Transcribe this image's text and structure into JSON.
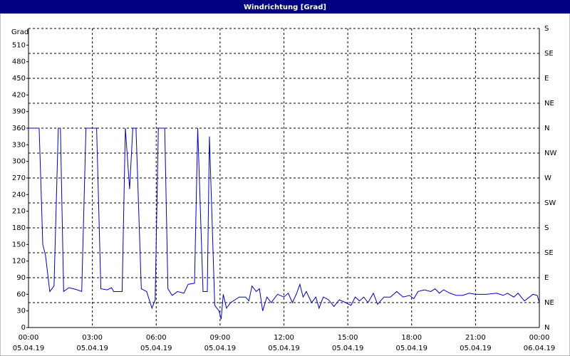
{
  "chart_data": {
    "type": "line",
    "title": "Windrichtung [Grad]",
    "y_label": "Grad",
    "xlim": [
      0,
      24
    ],
    "xticks": [
      {
        "value": 0,
        "label": [
          "00:00",
          "05.04.19"
        ]
      },
      {
        "value": 3,
        "label": [
          "03:00",
          "05.04.19"
        ]
      },
      {
        "value": 6,
        "label": [
          "06:00",
          "05.04.19"
        ]
      },
      {
        "value": 9,
        "label": [
          "09:00",
          "05.04.19"
        ]
      },
      {
        "value": 12,
        "label": [
          "12:00",
          "05.04.19"
        ]
      },
      {
        "value": 15,
        "label": [
          "15:00",
          "05.04.19"
        ]
      },
      {
        "value": 18,
        "label": [
          "18:00",
          "05.04.19"
        ]
      },
      {
        "value": 21,
        "label": [
          "21:00",
          "05.04.19"
        ]
      },
      {
        "value": 24,
        "label": [
          "00:00",
          "06.04.19"
        ]
      }
    ],
    "ylim": [
      0,
      540
    ],
    "yticks": [
      0,
      30,
      60,
      90,
      120,
      150,
      180,
      210,
      240,
      270,
      300,
      330,
      360,
      390,
      420,
      450,
      480,
      510
    ],
    "y2lim": [
      0,
      540
    ],
    "y2ticks": [
      {
        "value": 0,
        "label": "N"
      },
      {
        "value": 45,
        "label": "NE"
      },
      {
        "value": 90,
        "label": "E"
      },
      {
        "value": 135,
        "label": "SE"
      },
      {
        "value": 180,
        "label": "S"
      },
      {
        "value": 225,
        "label": "SW"
      },
      {
        "value": 270,
        "label": "W"
      },
      {
        "value": 315,
        "label": "NW"
      },
      {
        "value": 360,
        "label": "N"
      },
      {
        "value": 405,
        "label": "NE"
      },
      {
        "value": 450,
        "label": "E"
      },
      {
        "value": 495,
        "label": "SE"
      },
      {
        "value": 540,
        "label": "S"
      }
    ],
    "grid": true,
    "x": [
      0,
      0.5,
      0.55,
      0.67,
      0.8,
      1.0,
      1.2,
      1.4,
      1.5,
      1.65,
      1.9,
      2.3,
      2.5,
      2.7,
      3.2,
      3.4,
      3.7,
      3.9,
      4.0,
      4.4,
      4.55,
      4.75,
      4.9,
      5.05,
      5.3,
      5.55,
      5.8,
      5.95,
      6.1,
      6.4,
      6.55,
      6.75,
      7.0,
      7.3,
      7.5,
      7.8,
      7.95,
      8.2,
      8.4,
      8.5,
      8.75,
      8.95,
      9.05,
      9.15,
      9.3,
      9.5,
      9.9,
      10.2,
      10.35,
      10.5,
      10.7,
      10.85,
      11.0,
      11.2,
      11.4,
      11.7,
      12.0,
      12.2,
      12.4,
      12.6,
      12.75,
      12.9,
      13.05,
      13.3,
      13.5,
      13.65,
      13.85,
      14.1,
      14.35,
      14.6,
      14.9,
      15.15,
      15.35,
      15.55,
      15.75,
      15.95,
      16.2,
      16.4,
      16.7,
      17.0,
      17.3,
      17.6,
      17.9,
      18.1,
      18.3,
      18.6,
      18.9,
      19.1,
      19.3,
      19.5,
      19.8,
      20.1,
      20.4,
      20.7,
      21.0,
      21.5,
      22.0,
      22.3,
      22.5,
      22.8,
      23.0,
      23.3,
      23.7,
      23.9,
      24.0
    ],
    "series": [
      {
        "color": "#0000c0",
        "values": [
          360,
          360,
          300,
          150,
          130,
          65,
          75,
          360,
          360,
          65,
          72,
          68,
          65,
          360,
          360,
          70,
          68,
          72,
          65,
          65,
          360,
          250,
          360,
          360,
          70,
          65,
          35,
          50,
          360,
          360,
          70,
          58,
          65,
          62,
          78,
          80,
          360,
          65,
          65,
          345,
          40,
          30,
          15,
          60,
          35,
          45,
          55,
          55,
          48,
          75,
          65,
          70,
          30,
          55,
          45,
          60,
          55,
          62,
          45,
          62,
          78,
          55,
          65,
          45,
          55,
          35,
          55,
          50,
          38,
          50,
          45,
          40,
          55,
          48,
          55,
          45,
          62,
          42,
          55,
          55,
          65,
          55,
          58,
          52,
          65,
          68,
          65,
          70,
          62,
          68,
          62,
          58,
          58,
          62,
          60,
          60,
          62,
          58,
          62,
          55,
          62,
          48,
          60,
          58,
          45
        ]
      }
    ]
  }
}
